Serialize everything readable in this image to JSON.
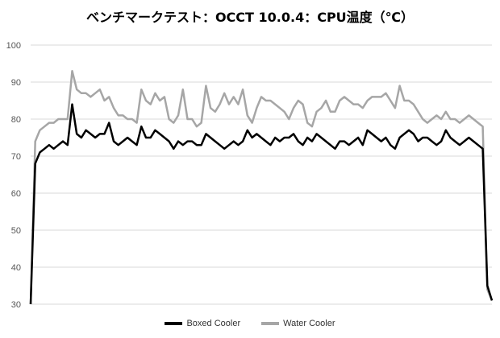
{
  "chart_data": {
    "type": "line",
    "title": "ベンチマークテスト：OCCT 10.0.4：CPU温度（℃）",
    "xlabel": "",
    "ylabel": "",
    "ylim": [
      30,
      100
    ],
    "yticks": [
      "100",
      "90",
      "80",
      "70",
      "60",
      "50",
      "40",
      "30"
    ],
    "grid": true,
    "legend_position": "bottom",
    "x": [
      0,
      1,
      2,
      3,
      4,
      5,
      6,
      7,
      8,
      9,
      10,
      11,
      12,
      13,
      14,
      15,
      16,
      17,
      18,
      19,
      20,
      21,
      22,
      23,
      24,
      25,
      26,
      27,
      28,
      29,
      30,
      31,
      32,
      33,
      34,
      35,
      36,
      37,
      38,
      39,
      40,
      41,
      42,
      43,
      44,
      45,
      46,
      47,
      48,
      49,
      50,
      51,
      52,
      53,
      54,
      55,
      56,
      57,
      58,
      59,
      60,
      61,
      62,
      63,
      64,
      65,
      66,
      67,
      68,
      69,
      70,
      71,
      72,
      73,
      74,
      75,
      76,
      77,
      78,
      79,
      80,
      81,
      82,
      83,
      84,
      85,
      86,
      87,
      88,
      89,
      90,
      91,
      92,
      93,
      94,
      95,
      96,
      97,
      98,
      99,
      100
    ],
    "series": [
      {
        "name": "Boxed Cooler",
        "color": "#000000",
        "values": [
          30,
          68,
          71,
          72,
          73,
          72,
          73,
          74,
          73,
          84,
          76,
          75,
          77,
          76,
          75,
          76,
          76,
          79,
          74,
          73,
          74,
          75,
          74,
          73,
          78,
          75,
          75,
          77,
          76,
          75,
          74,
          72,
          74,
          73,
          74,
          74,
          73,
          73,
          76,
          75,
          74,
          73,
          72,
          73,
          74,
          73,
          74,
          77,
          75,
          76,
          75,
          74,
          73,
          75,
          74,
          75,
          75,
          76,
          74,
          73,
          75,
          74,
          76,
          75,
          74,
          73,
          72,
          74,
          74,
          73,
          74,
          75,
          73,
          77,
          76,
          75,
          74,
          75,
          73,
          72,
          75,
          76,
          77,
          76,
          74,
          75,
          75,
          74,
          73,
          74,
          77,
          75,
          74,
          73,
          74,
          75,
          74,
          73,
          72,
          35,
          31
        ]
      },
      {
        "name": "Water Cooler",
        "color": "#a6a6a6",
        "values": [
          30,
          74,
          77,
          78,
          79,
          79,
          80,
          80,
          80,
          93,
          88,
          87,
          87,
          86,
          87,
          88,
          85,
          86,
          83,
          81,
          81,
          80,
          80,
          79,
          88,
          85,
          84,
          87,
          85,
          86,
          80,
          79,
          81,
          88,
          80,
          80,
          78,
          79,
          89,
          83,
          82,
          84,
          87,
          84,
          86,
          84,
          88,
          81,
          79,
          83,
          86,
          85,
          85,
          84,
          83,
          82,
          80,
          83,
          85,
          84,
          79,
          78,
          82,
          83,
          85,
          82,
          82,
          85,
          86,
          85,
          84,
          84,
          83,
          85,
          86,
          86,
          86,
          87,
          85,
          83,
          89,
          85,
          85,
          84,
          82,
          80,
          79,
          80,
          81,
          80,
          82,
          80,
          80,
          79,
          80,
          81,
          80,
          79,
          78,
          34,
          31
        ]
      }
    ]
  }
}
